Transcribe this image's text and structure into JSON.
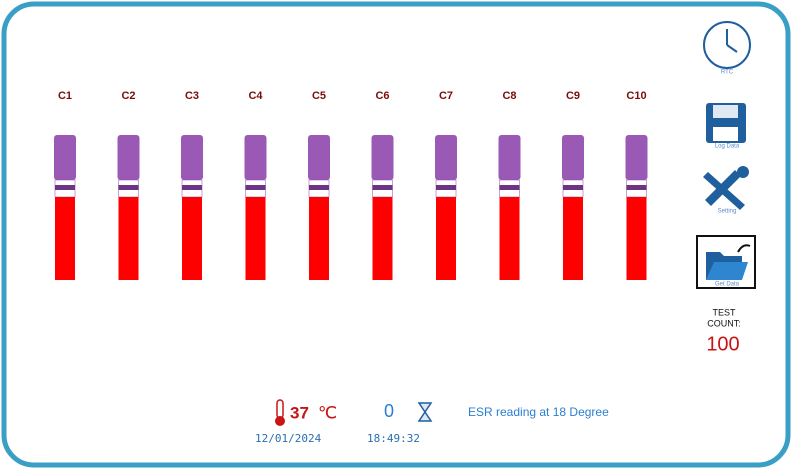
{
  "channels": [
    "C1",
    "C2",
    "C3",
    "C4",
    "C5",
    "C6",
    "C7",
    "C8",
    "C9",
    "C10"
  ],
  "sidebar": {
    "buttons": [
      "RTC",
      "Log Data",
      "Setting",
      "Get Data"
    ],
    "test_count_label": [
      "TEST",
      "COUNT:"
    ],
    "test_count": 100
  },
  "status": {
    "temperature": 37,
    "temperature_unit": "℃",
    "counter": 0,
    "message": "ESR reading at 18 Degree",
    "date": "12/01/2024",
    "time": "18:49:32"
  }
}
